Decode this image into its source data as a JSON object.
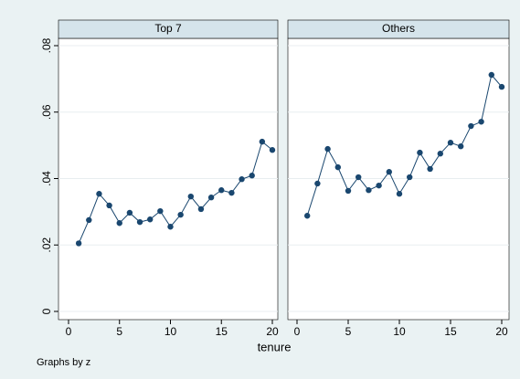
{
  "chart_data": {
    "type": "line",
    "x_label": "tenure",
    "note": "Graphs by z",
    "color": "#1a476f",
    "grid": true,
    "xlim": [
      0,
      20
    ],
    "xticks": [
      0,
      5,
      10,
      15,
      20
    ],
    "ylim": [
      0,
      0.08
    ],
    "yticks": [
      {
        "value": 0,
        "label": "0"
      },
      {
        "value": 0.02,
        "label": ".02"
      },
      {
        "value": 0.04,
        "label": ".04"
      },
      {
        "value": 0.06,
        "label": ".06"
      },
      {
        "value": 0.08,
        "label": ".08"
      }
    ],
    "panels": [
      {
        "title": "Top 7",
        "x": [
          1,
          2,
          3,
          4,
          5,
          6,
          7,
          8,
          9,
          10,
          11,
          12,
          13,
          14,
          15,
          16,
          17,
          18,
          19,
          20
        ],
        "values": [
          0.0205,
          0.0275,
          0.0354,
          0.0319,
          0.0266,
          0.0297,
          0.0269,
          0.0277,
          0.0302,
          0.0255,
          0.0291,
          0.0346,
          0.0308,
          0.0343,
          0.0365,
          0.0357,
          0.0398,
          0.0409,
          0.0511,
          0.0486
        ]
      },
      {
        "title": "Others",
        "x": [
          1,
          2,
          3,
          4,
          5,
          6,
          7,
          8,
          9,
          10,
          11,
          12,
          13,
          14,
          15,
          16,
          17,
          18,
          19,
          20
        ],
        "values": [
          0.0288,
          0.0385,
          0.0489,
          0.0434,
          0.0363,
          0.0404,
          0.0365,
          0.0379,
          0.042,
          0.0354,
          0.0404,
          0.0478,
          0.0429,
          0.0475,
          0.0508,
          0.0497,
          0.0558,
          0.0571,
          0.0712,
          0.0676
        ]
      }
    ]
  }
}
